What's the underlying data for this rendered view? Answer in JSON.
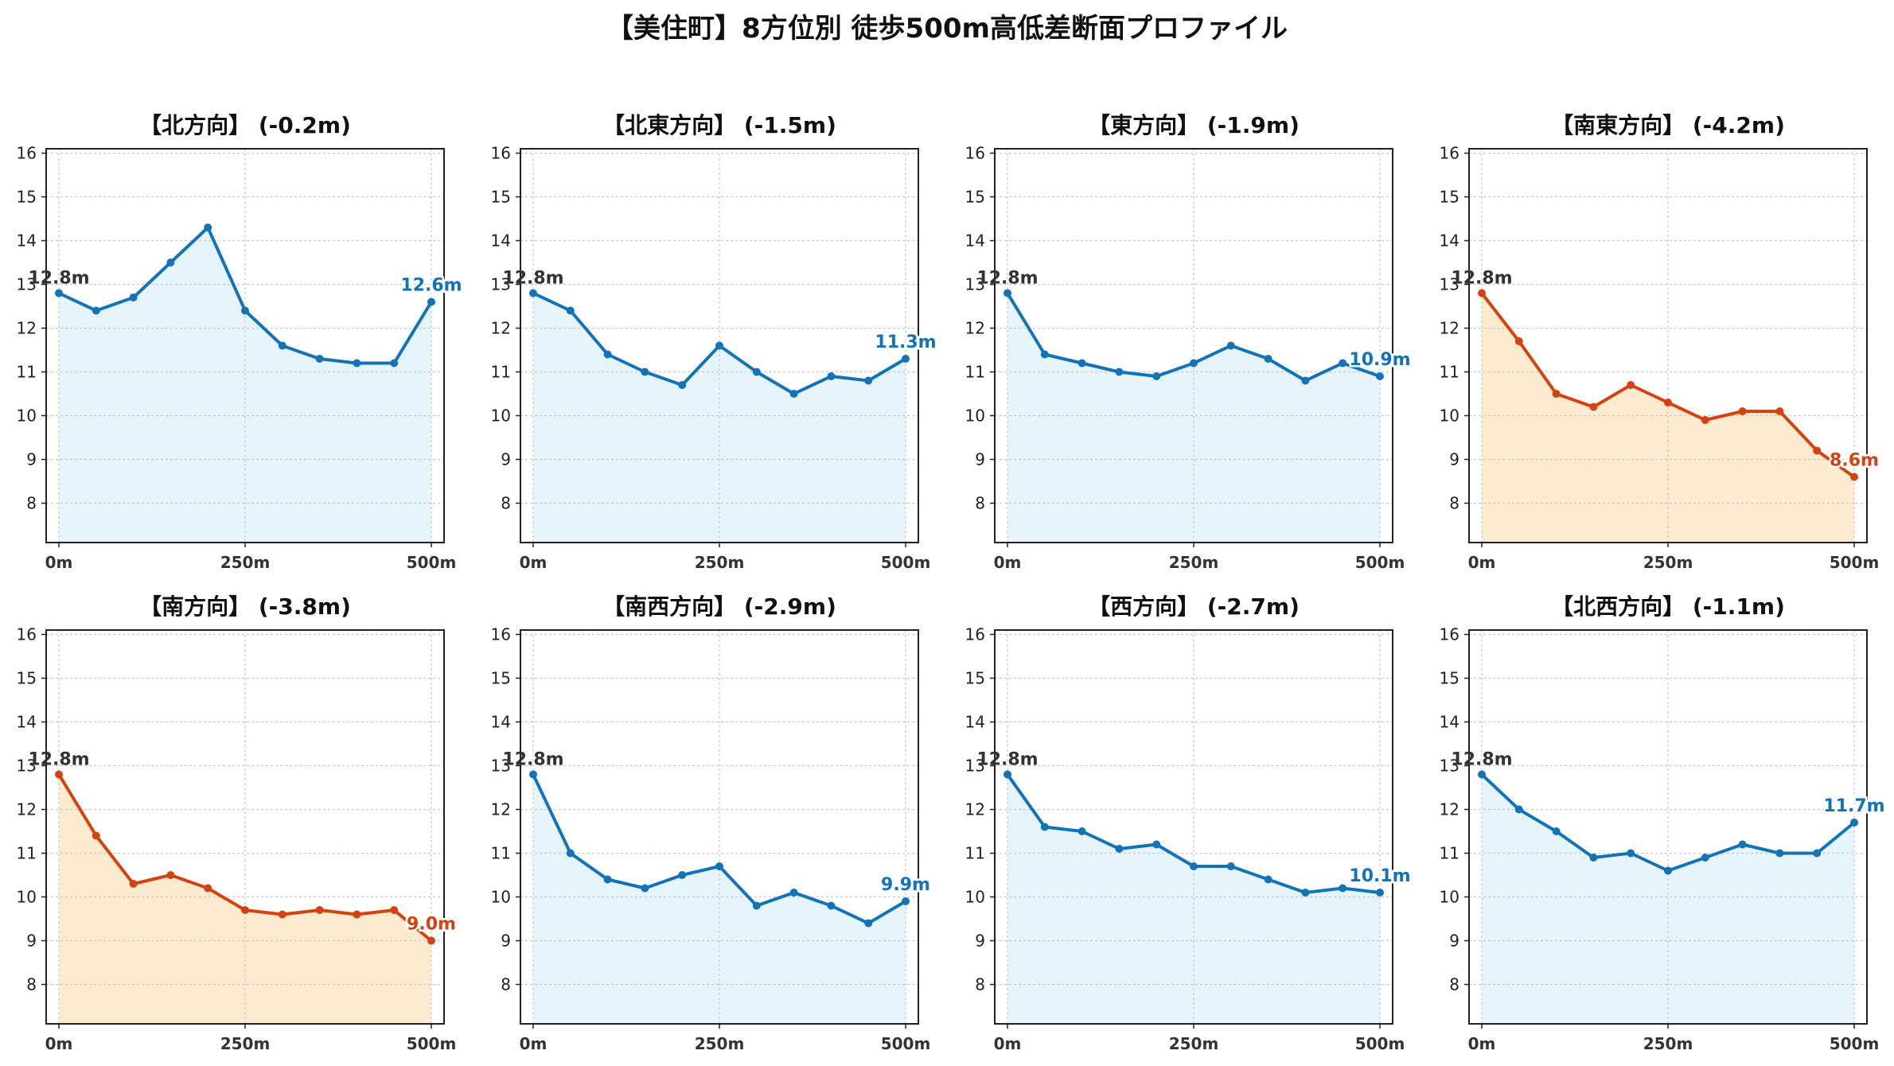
{
  "title": "【美住町】8方位別 徒歩500m高低差断面プロファイル",
  "colors": {
    "up": "#1273b8",
    "down": "#d4420f",
    "fill_up": "#e6f5fc",
    "fill_down": "#fdebcf"
  },
  "chart_data": {
    "type": "line",
    "title": "【美住町】8方位別 徒歩500m高低差断面プロファイル",
    "x": [
      0,
      50,
      100,
      150,
      200,
      250,
      300,
      350,
      400,
      450,
      500
    ],
    "x_ticks": [
      "0m",
      "250m",
      "500m"
    ],
    "xlim": [
      0,
      500
    ],
    "ylim": [
      7.1,
      16.1
    ],
    "y_ticks": [
      8,
      9,
      10,
      11,
      12,
      13,
      14,
      15,
      16
    ],
    "grid": true,
    "panels": [
      {
        "title": "【北方向】 (-0.2m)",
        "style": "up",
        "start_label": "12.8m",
        "end_label": "12.6m",
        "values": [
          12.8,
          12.4,
          12.7,
          13.5,
          14.3,
          12.4,
          11.6,
          11.3,
          11.2,
          11.2,
          12.6
        ]
      },
      {
        "title": "【北東方向】 (-1.5m)",
        "style": "up",
        "start_label": "12.8m",
        "end_label": "11.3m",
        "values": [
          12.8,
          12.4,
          11.4,
          11.0,
          10.7,
          11.6,
          11.0,
          10.5,
          10.9,
          10.8,
          11.3
        ]
      },
      {
        "title": "【東方向】 (-1.9m)",
        "style": "up",
        "start_label": "12.8m",
        "end_label": "10.9m",
        "values": [
          12.8,
          11.4,
          11.2,
          11.0,
          10.9,
          11.2,
          11.6,
          11.3,
          10.8,
          11.2,
          10.9
        ]
      },
      {
        "title": "【南東方向】 (-4.2m)",
        "style": "down",
        "start_label": "12.8m",
        "end_label": "8.6m",
        "values": [
          12.8,
          11.7,
          10.5,
          10.2,
          10.7,
          10.3,
          9.9,
          10.1,
          10.1,
          9.2,
          8.6
        ]
      },
      {
        "title": "【南方向】 (-3.8m)",
        "style": "down",
        "start_label": "12.8m",
        "end_label": "9.0m",
        "values": [
          12.8,
          11.4,
          10.3,
          10.5,
          10.2,
          9.7,
          9.6,
          9.7,
          9.6,
          9.7,
          9.0
        ]
      },
      {
        "title": "【南西方向】 (-2.9m)",
        "style": "up",
        "start_label": "12.8m",
        "end_label": "9.9m",
        "values": [
          12.8,
          11.0,
          10.4,
          10.2,
          10.5,
          10.7,
          9.8,
          10.1,
          9.8,
          9.4,
          9.9
        ]
      },
      {
        "title": "【西方向】 (-2.7m)",
        "style": "up",
        "start_label": "12.8m",
        "end_label": "10.1m",
        "values": [
          12.8,
          11.6,
          11.5,
          11.1,
          11.2,
          10.7,
          10.7,
          10.4,
          10.1,
          10.2,
          10.1
        ]
      },
      {
        "title": "【北西方向】 (-1.1m)",
        "style": "up",
        "start_label": "12.8m",
        "end_label": "11.7m",
        "values": [
          12.8,
          12.0,
          11.5,
          10.9,
          11.0,
          10.6,
          10.9,
          11.2,
          11.0,
          11.0,
          11.7
        ]
      }
    ]
  }
}
